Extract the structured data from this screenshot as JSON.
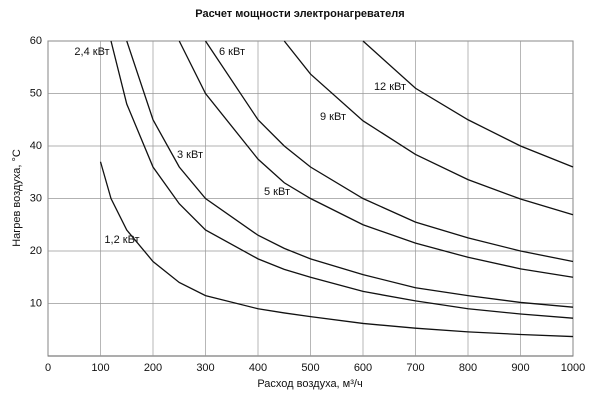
{
  "chart_data": {
    "type": "line",
    "title": "Расчет мощности электронагревателя",
    "x_label": "Расход воздуха, м³/ч",
    "y_label": "Нагрев воздуха, °C",
    "x": [
      100,
      120,
      150,
      200,
      250,
      300,
      400,
      450,
      500,
      600,
      700,
      800,
      900,
      1000
    ],
    "series": [
      {
        "name": "1,2 кВт",
        "color": "#111111",
        "values": [
          37,
          30,
          24,
          18,
          14,
          11.5,
          9,
          8.2,
          7.5,
          6.2,
          5.3,
          4.6,
          4.1,
          3.7
        ]
      },
      {
        "name": "2,4 кВт",
        "color": "#111111",
        "values": [
          null,
          60,
          48,
          36,
          29,
          24,
          18.5,
          16.5,
          15,
          12.3,
          10.5,
          9,
          8,
          7.2
        ]
      },
      {
        "name": "3 кВт",
        "color": "#111111",
        "values": [
          null,
          null,
          60,
          45,
          36,
          30,
          23,
          20.5,
          18.5,
          15.5,
          13,
          11.5,
          10.2,
          9.3
        ]
      },
      {
        "name": "5 кВт",
        "color": "#111111",
        "values": [
          null,
          null,
          null,
          null,
          60,
          50,
          37.5,
          33,
          30,
          25,
          21.5,
          18.8,
          16.6,
          15
        ]
      },
      {
        "name": "6 кВт",
        "color": "#111111",
        "values": [
          null,
          null,
          null,
          null,
          null,
          60,
          45,
          40,
          36,
          30,
          25.5,
          22.5,
          20,
          18
        ]
      },
      {
        "name": "9 кВт",
        "color": "#111111",
        "values": [
          null,
          null,
          null,
          null,
          null,
          null,
          null,
          60,
          53.7,
          44.8,
          38.4,
          33.6,
          29.9,
          26.9
        ]
      },
      {
        "name": "12 кВт",
        "color": "#111111",
        "values": [
          null,
          null,
          null,
          null,
          null,
          null,
          null,
          null,
          null,
          60,
          51,
          45,
          40,
          36
        ]
      }
    ],
    "xlim": [
      0,
      1000
    ],
    "xticks": [
      0,
      100,
      200,
      300,
      400,
      500,
      600,
      700,
      800,
      900,
      1000
    ],
    "ylim": [
      0,
      60
    ],
    "yticks": [
      10,
      20,
      30,
      40,
      50,
      60
    ],
    "grid": true
  }
}
